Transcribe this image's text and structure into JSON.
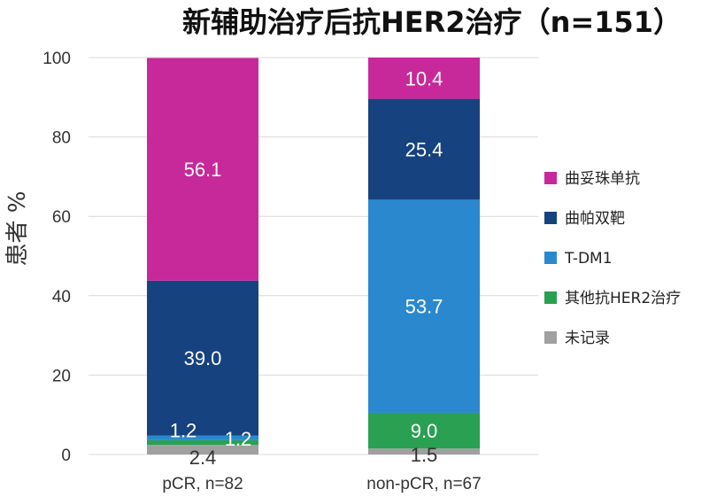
{
  "chart_data": {
    "type": "bar",
    "stacked": true,
    "title": "新辅助治疗后抗HER2治疗（n=151）",
    "xlabel": "",
    "ylabel": "患者 %",
    "ylim": [
      0,
      100
    ],
    "yticks": [
      0,
      20,
      40,
      60,
      80,
      100
    ],
    "grid": true,
    "legend_position": "right",
    "categories": [
      "pCR, n=82",
      "non-pCR, n=67"
    ],
    "series": [
      {
        "name": "未记录",
        "color": "#a0a0a0",
        "values": [
          2.4,
          1.5
        ],
        "labels": [
          "2.4",
          "1.5"
        ],
        "label_color": "#333333"
      },
      {
        "name": "其他抗HER2治疗",
        "color": "#2aa052",
        "values": [
          1.2,
          9.0
        ],
        "labels": [
          "1.2",
          "9.0"
        ],
        "label_color": "#ffffff"
      },
      {
        "name": "T-DM1",
        "color": "#2a88cf",
        "values": [
          1.2,
          53.7
        ],
        "labels": [
          "1.2",
          "53.7"
        ],
        "label_color": "#ffffff"
      },
      {
        "name": "曲帕双靶",
        "color": "#16427f",
        "values": [
          39.0,
          25.4
        ],
        "labels": [
          "39.0",
          "25.4"
        ],
        "label_color": "#ffffff"
      },
      {
        "name": "曲妥珠单抗",
        "color": "#c8299a",
        "values": [
          56.1,
          10.4
        ],
        "labels": [
          "56.1",
          "10.4"
        ],
        "label_color": "#ffffff"
      }
    ],
    "legend_order": [
      "曲妥珠单抗",
      "曲帕双靶",
      "T-DM1",
      "其他抗HER2治疗",
      "未记录"
    ]
  }
}
